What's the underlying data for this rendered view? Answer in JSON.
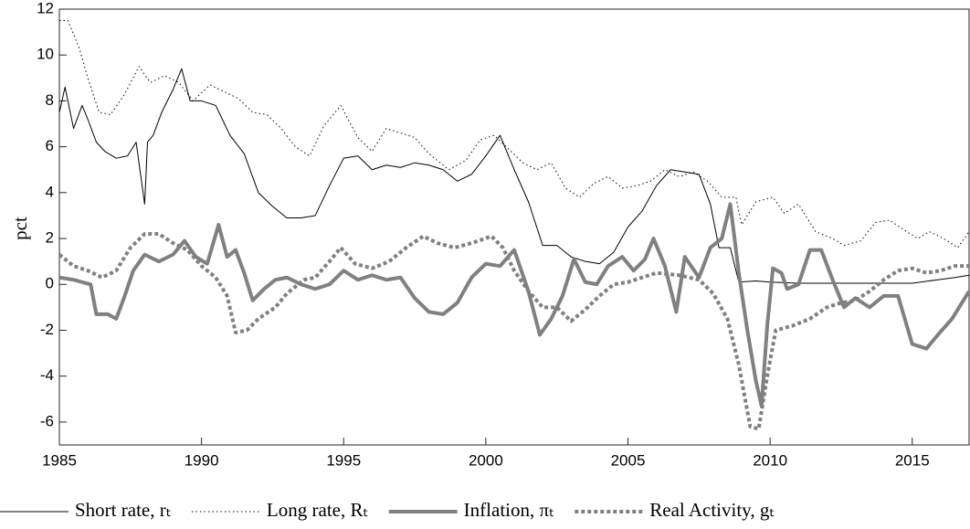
{
  "chart_data": {
    "type": "line",
    "ylabel": "pct",
    "xlim": [
      1985,
      2017
    ],
    "xticks": [
      1985,
      1990,
      1995,
      2000,
      2005,
      2010,
      2015
    ],
    "ylim": [
      -7,
      12
    ],
    "yticks": [
      -6,
      -4,
      -2,
      0,
      2,
      4,
      6,
      8,
      10,
      12
    ],
    "grid": false,
    "legend": "bottom",
    "series": [
      {
        "name": "Short rate, rₜ",
        "color": "#000000",
        "style": "solid",
        "width": 1,
        "x": [
          1985,
          1985.2,
          1985.5,
          1985.8,
          1986,
          1986.3,
          1986.6,
          1987,
          1987.4,
          1987.7,
          1988,
          1988.1,
          1988.3,
          1988.6,
          1989,
          1989.3,
          1989.6,
          1990,
          1990.5,
          1991,
          1991.5,
          1992,
          1992.5,
          1993,
          1993.5,
          1994,
          1994.5,
          1995,
          1995.5,
          1996,
          1996.5,
          1997,
          1997.5,
          1998,
          1998.5,
          1999,
          1999.5,
          2000,
          2000.5,
          2001,
          2001.5,
          2002,
          2002.5,
          2003,
          2003.5,
          2004,
          2004.5,
          2005,
          2005.5,
          2006,
          2006.5,
          2007,
          2007.5,
          2007.9,
          2008.2,
          2008.6,
          2008.9,
          2009.5,
          2010,
          2011,
          2012,
          2013,
          2014,
          2015,
          2015.9,
          2016.5,
          2017
        ],
        "values": [
          7.5,
          8.6,
          6.8,
          7.8,
          7.2,
          6.2,
          5.8,
          5.5,
          5.6,
          6.2,
          3.5,
          6.2,
          6.5,
          7.5,
          8.5,
          9.4,
          8.0,
          8.0,
          7.8,
          6.5,
          5.7,
          4.0,
          3.4,
          2.9,
          2.9,
          3.0,
          4.3,
          5.5,
          5.6,
          5.0,
          5.2,
          5.1,
          5.3,
          5.2,
          5.0,
          4.5,
          4.8,
          5.6,
          6.5,
          5.0,
          3.6,
          1.7,
          1.7,
          1.2,
          1.0,
          0.9,
          1.4,
          2.5,
          3.2,
          4.3,
          5.0,
          4.9,
          4.8,
          3.5,
          1.6,
          1.6,
          0.1,
          0.15,
          0.1,
          0.05,
          0.05,
          0.05,
          0.05,
          0.05,
          0.2,
          0.3,
          0.4
        ]
      },
      {
        "name": "Long rate, Rₜ",
        "color": "#000000",
        "style": "dotted",
        "width": 1,
        "x": [
          1985,
          1985.3,
          1985.7,
          1986,
          1986.4,
          1986.8,
          1987.3,
          1987.8,
          1988.2,
          1988.7,
          1989.2,
          1989.7,
          1990.3,
          1990.8,
          1991.3,
          1991.8,
          1992.3,
          1992.8,
          1993.3,
          1993.8,
          1994.3,
          1994.9,
          1995.5,
          1996,
          1996.5,
          1997,
          1997.5,
          1998,
          1998.7,
          1999.3,
          1999.8,
          2000.3,
          2000.8,
          2001.3,
          2001.8,
          2002.3,
          2002.8,
          2003.3,
          2003.8,
          2004.3,
          2004.8,
          2005.3,
          2005.8,
          2006.3,
          2006.8,
          2007.3,
          2007.8,
          2008.3,
          2008.8,
          2009,
          2009.5,
          2010.1,
          2010.5,
          2011,
          2011.6,
          2012.2,
          2012.6,
          2013.2,
          2013.7,
          2014.2,
          2014.8,
          2015.2,
          2015.6,
          2016.1,
          2016.6,
          2017
        ],
        "values": [
          11.5,
          11.5,
          10.3,
          9.0,
          7.5,
          7.4,
          8.3,
          9.5,
          8.8,
          9.1,
          8.8,
          8.0,
          8.7,
          8.4,
          8.1,
          7.5,
          7.4,
          6.8,
          6.0,
          5.6,
          6.9,
          7.8,
          6.4,
          5.8,
          6.8,
          6.6,
          6.4,
          5.7,
          5.0,
          5.4,
          6.3,
          6.5,
          5.9,
          5.3,
          5.0,
          5.3,
          4.2,
          3.8,
          4.4,
          4.7,
          4.2,
          4.3,
          4.5,
          5.0,
          4.7,
          4.9,
          4.5,
          3.8,
          3.8,
          2.6,
          3.6,
          3.8,
          3.1,
          3.5,
          2.3,
          2.0,
          1.7,
          1.9,
          2.7,
          2.8,
          2.3,
          2.0,
          2.3,
          2.0,
          1.6,
          2.3
        ]
      },
      {
        "name": "Inflation, πₜ",
        "color": "#808080",
        "style": "solid",
        "width": 4,
        "x": [
          1985,
          1985.5,
          1985.8,
          1986.1,
          1986.3,
          1986.7,
          1987,
          1987.3,
          1987.6,
          1988,
          1988.5,
          1989,
          1989.4,
          1989.8,
          1990.2,
          1990.6,
          1990.9,
          1991.2,
          1991.5,
          1991.8,
          1992.2,
          1992.6,
          1993,
          1993.5,
          1994,
          1994.5,
          1995,
          1995.5,
          1996,
          1996.5,
          1997,
          1997.5,
          1998,
          1998.5,
          1999,
          1999.5,
          2000,
          2000.5,
          2001,
          2001.5,
          2001.9,
          2002.3,
          2002.7,
          2003.1,
          2003.5,
          2003.9,
          2004.3,
          2004.8,
          2005.2,
          2005.6,
          2005.9,
          2006.3,
          2006.7,
          2007,
          2007.5,
          2007.9,
          2008.3,
          2008.6,
          2008.9,
          2009.2,
          2009.5,
          2009.7,
          2009.9,
          2010.1,
          2010.4,
          2010.6,
          2011,
          2011.4,
          2011.8,
          2012.2,
          2012.6,
          2013,
          2013.5,
          2014,
          2014.5,
          2015,
          2015.5,
          2015.9,
          2016.4,
          2017
        ],
        "values": [
          0.3,
          0.2,
          0.1,
          0.0,
          -1.3,
          -1.3,
          -1.5,
          -0.5,
          0.6,
          1.3,
          1.0,
          1.3,
          1.9,
          1.2,
          0.9,
          2.6,
          1.2,
          1.5,
          0.5,
          -0.7,
          -0.2,
          0.2,
          0.3,
          0.0,
          -0.2,
          0.0,
          0.6,
          0.2,
          0.4,
          0.2,
          0.3,
          -0.6,
          -1.2,
          -1.3,
          -0.8,
          0.3,
          0.9,
          0.8,
          1.5,
          -0.3,
          -2.2,
          -1.5,
          -0.5,
          1.1,
          0.1,
          0.0,
          0.8,
          1.2,
          0.6,
          1.1,
          2.0,
          0.8,
          -1.2,
          1.2,
          0.3,
          1.6,
          2.0,
          3.5,
          0.5,
          -2.0,
          -4.2,
          -5.3,
          -1.8,
          0.7,
          0.5,
          -0.2,
          0.0,
          1.5,
          1.5,
          0.2,
          -1.0,
          -0.6,
          -1.0,
          -0.5,
          -0.5,
          -2.6,
          -2.8,
          -2.2,
          -1.5,
          -0.3
        ]
      },
      {
        "name": "Real Activity, gₜ",
        "color": "#808080",
        "style": "dotted",
        "width": 4,
        "x": [
          1985,
          1985.5,
          1986,
          1986.5,
          1987,
          1987.5,
          1988,
          1988.5,
          1989,
          1989.5,
          1990,
          1990.5,
          1990.9,
          1991.2,
          1991.6,
          1992,
          1992.6,
          1993,
          1993.6,
          1994,
          1994.5,
          1994.9,
          1995.4,
          1996,
          1996.6,
          1997.2,
          1997.8,
          1998.3,
          1998.9,
          1999.5,
          2000.2,
          2000.6,
          2001,
          2001.5,
          2002,
          2002.5,
          2003,
          2003.5,
          2004,
          2004.5,
          2005,
          2006,
          2006.8,
          2007.5,
          2008,
          2008.5,
          2008.9,
          2009.3,
          2009.6,
          2009.9,
          2010.2,
          2010.8,
          2011.4,
          2012,
          2012.5,
          2013,
          2013.5,
          2014,
          2014.5,
          2015,
          2015.5,
          2016,
          2016.5,
          2017
        ],
        "values": [
          1.3,
          0.8,
          0.6,
          0.3,
          0.6,
          1.6,
          2.2,
          2.2,
          1.8,
          1.5,
          0.8,
          0.3,
          -0.5,
          -2.1,
          -2.0,
          -1.5,
          -1.0,
          -0.4,
          0.2,
          0.3,
          1.0,
          1.6,
          0.9,
          0.7,
          1.0,
          1.6,
          2.1,
          1.8,
          1.6,
          1.8,
          2.1,
          1.6,
          0.6,
          -0.3,
          -1.0,
          -1.0,
          -1.6,
          -1.1,
          -0.5,
          0.0,
          0.1,
          0.5,
          0.4,
          0.2,
          -0.4,
          -1.5,
          -3.5,
          -6.2,
          -6.3,
          -4.0,
          -2.0,
          -1.8,
          -1.5,
          -1.0,
          -0.8,
          -0.7,
          -0.3,
          0.2,
          0.6,
          0.7,
          0.5,
          0.6,
          0.8,
          0.8
        ]
      }
    ]
  }
}
